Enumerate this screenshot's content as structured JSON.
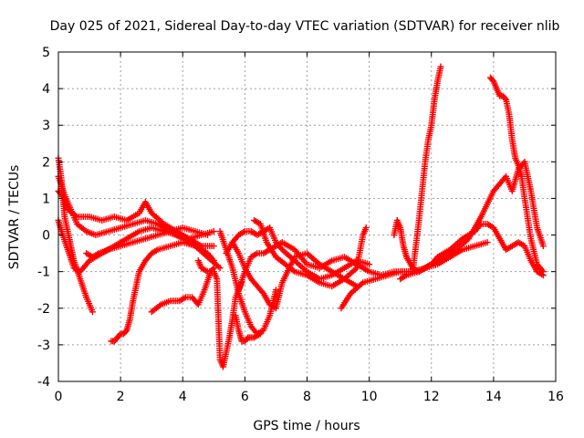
{
  "chart_data": {
    "type": "scatter",
    "title": "Day 025 of 2021, Sidereal Day-to-day VTEC variation (SDTVAR) for receiver nlib",
    "xlabel": "GPS time / hours",
    "ylabel": "SDTVAR / TECUs",
    "xlim": [
      0,
      16
    ],
    "ylim": [
      -4,
      5
    ],
    "xticks": [
      "0",
      "2",
      "4",
      "6",
      "8",
      "10",
      "12",
      "14",
      "16"
    ],
    "yticks": [
      "-4",
      "-3",
      "-2",
      "-1",
      "0",
      "1",
      "2",
      "3",
      "4",
      "5"
    ],
    "grid": true,
    "marker": "plus",
    "color": "#ff0000",
    "series": [
      {
        "x": [
          0.0,
          0.1,
          0.2,
          0.3,
          0.6,
          1.0,
          1.4,
          1.8,
          2.2,
          2.6,
          2.8,
          3.0,
          3.4,
          3.8,
          4.2,
          4.6,
          5.0
        ],
        "y": [
          1.2,
          1.1,
          0.9,
          0.7,
          0.5,
          0.5,
          0.4,
          0.5,
          0.4,
          0.6,
          0.9,
          0.6,
          0.3,
          0.1,
          -0.1,
          -0.3,
          -0.3
        ]
      },
      {
        "x": [
          0.0,
          0.05,
          0.1,
          0.15,
          0.2,
          0.3,
          0.4,
          0.5,
          0.7,
          0.9,
          1.1
        ],
        "y": [
          2.1,
          1.8,
          1.5,
          1.0,
          0.5,
          0.1,
          -0.3,
          -0.7,
          -1.2,
          -1.7,
          -2.1
        ]
      },
      {
        "x": [
          0.0,
          0.2,
          0.4,
          0.6,
          0.9,
          1.2,
          1.6,
          2.0,
          2.4,
          2.8,
          3.2,
          3.6,
          4.0,
          4.4,
          4.8,
          5.2
        ],
        "y": [
          1.6,
          1.1,
          0.7,
          0.3,
          0.1,
          0.0,
          0.1,
          0.2,
          0.3,
          0.4,
          0.3,
          0.1,
          -0.1,
          -0.3,
          -0.6,
          -0.9
        ]
      },
      {
        "x": [
          0.0,
          0.1,
          0.3,
          0.5,
          0.7,
          1.0,
          1.4,
          1.8,
          2.2,
          2.6,
          3.0,
          3.4,
          3.8,
          4.2,
          4.6,
          5.0
        ],
        "y": [
          0.4,
          0.1,
          -0.4,
          -0.9,
          -1.0,
          -0.7,
          -0.5,
          -0.3,
          -0.1,
          0.1,
          0.2,
          0.1,
          0.0,
          -0.1,
          0.0,
          0.1
        ]
      },
      {
        "x": [
          0.9,
          1.1,
          1.3,
          1.6,
          2.0,
          2.4,
          2.8,
          3.2,
          3.6,
          4.0,
          4.4,
          4.8
        ],
        "y": [
          -0.5,
          -0.6,
          -0.5,
          -0.4,
          -0.3,
          -0.2,
          -0.1,
          0.0,
          0.1,
          0.2,
          0.1,
          0.0
        ]
      },
      {
        "x": [
          1.7,
          1.8,
          1.9,
          2.0,
          2.1,
          2.2,
          2.3,
          2.4,
          2.5,
          2.6,
          2.8,
          3.0,
          3.2,
          3.6,
          4.0,
          4.4,
          4.8,
          5.0
        ],
        "y": [
          -2.9,
          -2.9,
          -2.8,
          -2.7,
          -2.7,
          -2.6,
          -2.3,
          -1.8,
          -1.4,
          -1.0,
          -0.7,
          -0.5,
          -0.4,
          -0.3,
          -0.2,
          -0.3,
          -0.5,
          -0.7
        ]
      },
      {
        "x": [
          3.0,
          3.3,
          3.6,
          3.9,
          4.1,
          4.3,
          4.5,
          4.7,
          4.9,
          5.0
        ],
        "y": [
          -2.1,
          -1.9,
          -1.8,
          -1.8,
          -1.7,
          -1.7,
          -1.9,
          -1.5,
          -1.0,
          -0.9
        ]
      },
      {
        "x": [
          4.5,
          4.6,
          4.8,
          5.0,
          5.1,
          5.2,
          5.3,
          5.4,
          5.5,
          5.6,
          5.7,
          5.9
        ],
        "y": [
          -0.7,
          -0.9,
          -1.0,
          -1.0,
          -1.2,
          -3.4,
          -3.6,
          -3.2,
          -2.8,
          -2.3,
          -1.7,
          -1.3
        ]
      },
      {
        "x": [
          5.2,
          5.4,
          5.6,
          5.8,
          6.0,
          6.2,
          6.4,
          6.6,
          6.8,
          7.0
        ],
        "y": [
          0.1,
          -0.4,
          -0.9,
          -1.6,
          -2.1,
          -2.5,
          -2.7,
          -2.6,
          -2.2,
          -1.5
        ]
      },
      {
        "x": [
          5.7,
          5.8,
          5.9,
          6.0,
          6.1,
          6.2,
          6.3,
          6.5
        ],
        "y": [
          -2.2,
          -2.6,
          -2.9,
          -2.9,
          -2.8,
          -2.8,
          -2.8,
          -2.7
        ]
      },
      {
        "x": [
          5.6,
          5.8,
          6.0,
          6.2,
          6.4,
          6.6,
          6.8,
          7.0,
          7.2,
          7.6,
          8.0,
          8.4,
          8.8,
          9.2,
          9.6
        ],
        "y": [
          -0.2,
          -0.5,
          -0.9,
          -1.2,
          -1.4,
          -1.6,
          -1.9,
          -2.0,
          -1.3,
          -0.6,
          -0.5,
          -0.8,
          -1.0,
          -1.2,
          -1.4
        ]
      },
      {
        "x": [
          5.4,
          5.6,
          5.8,
          6.0,
          6.2,
          6.4,
          6.6,
          6.8,
          7.0,
          7.2,
          7.6,
          8.0,
          8.4,
          8.8,
          9.2,
          9.6,
          10.0
        ],
        "y": [
          -0.5,
          -0.2,
          0.0,
          0.1,
          0.1,
          0.0,
          0.1,
          0.2,
          -0.2,
          -0.4,
          -0.7,
          -1.0,
          -1.2,
          -1.1,
          -0.9,
          -0.7,
          -0.8
        ]
      },
      {
        "x": [
          6.3,
          6.5,
          6.7,
          7.0,
          7.3,
          7.6,
          8.0,
          8.4,
          8.8,
          9.2,
          9.6,
          9.8,
          9.9
        ],
        "y": [
          0.4,
          0.3,
          -0.2,
          -0.6,
          -0.8,
          -1.0,
          -1.1,
          -1.3,
          -1.4,
          -1.2,
          -0.9,
          0.0,
          0.2
        ]
      },
      {
        "x": [
          5.8,
          6.0,
          6.2,
          6.4,
          6.6,
          6.8,
          7.0,
          7.2,
          7.6,
          8.0,
          8.4,
          8.8,
          9.2,
          9.6,
          10.0,
          10.4,
          10.8,
          11.2,
          11.6
        ],
        "y": [
          -1.5,
          -1.0,
          -0.6,
          -0.5,
          -0.5,
          -0.4,
          -0.3,
          -0.2,
          -0.4,
          -0.8,
          -0.9,
          -0.7,
          -0.6,
          -0.8,
          -1.0,
          -1.1,
          -1.0,
          -1.0,
          -1.0
        ]
      },
      {
        "x": [
          9.1,
          9.4,
          9.8,
          10.2,
          10.6,
          11.0,
          11.4,
          11.8,
          12.2,
          12.6,
          13.0,
          13.4,
          13.8
        ],
        "y": [
          -2.0,
          -1.6,
          -1.3,
          -1.2,
          -1.1,
          -1.0,
          -1.0,
          -0.9,
          -0.8,
          -0.6,
          -0.4,
          -0.3,
          -0.2
        ]
      },
      {
        "x": [
          10.8,
          10.9,
          11.0,
          11.1,
          11.2,
          11.4,
          11.6,
          11.8,
          12.0,
          12.2,
          12.6,
          13.0,
          13.4,
          13.6,
          13.8,
          14.0,
          14.2,
          14.4,
          14.6,
          14.8,
          15.0,
          15.2,
          15.4,
          15.6
        ],
        "y": [
          0.0,
          0.4,
          0.2,
          -0.3,
          -0.6,
          -0.9,
          -1.0,
          -0.9,
          -0.8,
          -0.6,
          -0.4,
          -0.1,
          0.1,
          0.3,
          0.3,
          0.2,
          -0.1,
          -0.4,
          -0.3,
          -0.2,
          -0.3,
          -0.7,
          -1.0,
          -1.1
        ]
      },
      {
        "x": [
          11.4,
          11.6,
          11.7,
          11.8,
          11.9,
          12.0,
          12.1,
          12.2,
          12.3
        ],
        "y": [
          -1.0,
          0.4,
          1.2,
          2.0,
          2.6,
          3.0,
          3.7,
          4.2,
          4.6
        ]
      },
      {
        "x": [
          11.0,
          11.2,
          11.6,
          12.0,
          12.4,
          12.8,
          13.2,
          13.6,
          14.0,
          14.2,
          14.4,
          14.6,
          14.8,
          15.0,
          15.2,
          15.4,
          15.6
        ],
        "y": [
          -1.2,
          -1.1,
          -1.0,
          -0.8,
          -0.6,
          -0.4,
          -0.1,
          0.5,
          1.2,
          1.4,
          1.6,
          1.2,
          1.8,
          2.0,
          1.2,
          0.2,
          -0.3
        ]
      },
      {
        "x": [
          13.9,
          14.0,
          14.1,
          14.2,
          14.3,
          14.4,
          14.5,
          14.6,
          14.7,
          14.8,
          14.9,
          15.0,
          15.2,
          15.4,
          15.6
        ],
        "y": [
          4.3,
          4.2,
          4.0,
          3.8,
          3.8,
          3.7,
          3.3,
          2.6,
          2.1,
          1.9,
          1.6,
          1.0,
          -0.1,
          -0.8,
          -1.0
        ]
      }
    ]
  }
}
